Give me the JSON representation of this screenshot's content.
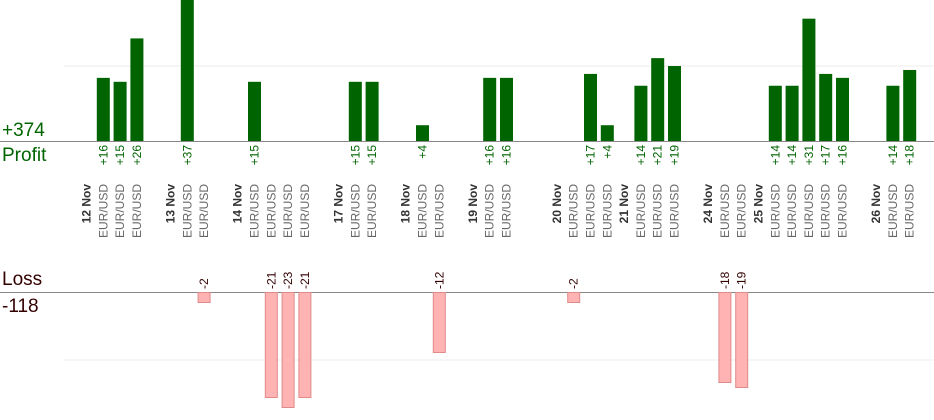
{
  "summary": {
    "profit_total": "+374",
    "profit_label": "Profit",
    "loss_label": "Loss",
    "loss_total": "-118"
  },
  "colors": {
    "profit_bar": "#006400",
    "loss_bar": "#ffb3b3",
    "loss_bar_stroke": "#e08a8a",
    "profit_text": "#006400",
    "loss_text": "#330000",
    "axis": "#888888",
    "grid": "#eeeeee"
  },
  "chart_data": {
    "type": "bar",
    "profit_ylim": [
      0,
      37
    ],
    "loss_ylim": [
      -23,
      0
    ],
    "grid": true,
    "dates": [
      {
        "label": "12 Nov",
        "slot": 0
      },
      {
        "label": "13 Nov",
        "slot": 5
      },
      {
        "label": "14 Nov",
        "slot": 9
      },
      {
        "label": "17 Nov",
        "slot": 15
      },
      {
        "label": "18 Nov",
        "slot": 19
      },
      {
        "label": "19 Nov",
        "slot": 23
      },
      {
        "label": "20 Nov",
        "slot": 28
      },
      {
        "label": "21 Nov",
        "slot": 32
      },
      {
        "label": "24 Nov",
        "slot": 37
      },
      {
        "label": "25 Nov",
        "slot": 40
      },
      {
        "label": "26 Nov",
        "slot": 47
      }
    ],
    "trades": [
      {
        "slot": 1,
        "symbol": "EUR/USD",
        "value": 16,
        "label": "+16"
      },
      {
        "slot": 2,
        "symbol": "EUR/USD",
        "value": 15,
        "label": "+15"
      },
      {
        "slot": 3,
        "symbol": "EUR/USD",
        "value": 26,
        "label": "+26"
      },
      {
        "slot": 6,
        "symbol": "EUR/USD",
        "value": 37,
        "label": "+37"
      },
      {
        "slot": 7,
        "symbol": "EUR/USD",
        "value": -2,
        "label": "-2"
      },
      {
        "slot": 10,
        "symbol": "EUR/USD",
        "value": 15,
        "label": "+15"
      },
      {
        "slot": 11,
        "symbol": "EUR/USD",
        "value": -21,
        "label": "-21"
      },
      {
        "slot": 12,
        "symbol": "EUR/USD",
        "value": -23,
        "label": "-23"
      },
      {
        "slot": 13,
        "symbol": "EUR/USD",
        "value": -21,
        "label": "-21"
      },
      {
        "slot": 16,
        "symbol": "EUR/USD",
        "value": 15,
        "label": "+15"
      },
      {
        "slot": 17,
        "symbol": "EUR/USD",
        "value": 15,
        "label": "+15"
      },
      {
        "slot": 20,
        "symbol": "EUR/USD",
        "value": 4,
        "label": "+4"
      },
      {
        "slot": 21,
        "symbol": "EUR/USD",
        "value": -12,
        "label": "-12"
      },
      {
        "slot": 24,
        "symbol": "EUR/USD",
        "value": 16,
        "label": "+16"
      },
      {
        "slot": 25,
        "symbol": "EUR/USD",
        "value": 16,
        "label": "+16"
      },
      {
        "slot": 29,
        "symbol": "EUR/USD",
        "value": -2,
        "label": "-2"
      },
      {
        "slot": 30,
        "symbol": "EUR/USD",
        "value": 17,
        "label": "+17"
      },
      {
        "slot": 31,
        "symbol": "EUR/USD",
        "value": 4,
        "label": "+4"
      },
      {
        "slot": 33,
        "symbol": "EUR/USD",
        "value": 14,
        "label": "+14"
      },
      {
        "slot": 34,
        "symbol": "EUR/USD",
        "value": 21,
        "label": "+21"
      },
      {
        "slot": 35,
        "symbol": "EUR/USD",
        "value": 19,
        "label": "+19"
      },
      {
        "slot": 38,
        "symbol": "EUR/USD",
        "value": -18,
        "label": "-18"
      },
      {
        "slot": 39,
        "symbol": "EUR/USD",
        "value": -19,
        "label": "-19"
      },
      {
        "slot": 41,
        "symbol": "EUR/USD",
        "value": 14,
        "label": "+14"
      },
      {
        "slot": 42,
        "symbol": "EUR/USD",
        "value": 14,
        "label": "+14"
      },
      {
        "slot": 43,
        "symbol": "EUR/USD",
        "value": 31,
        "label": "+31"
      },
      {
        "slot": 44,
        "symbol": "EUR/USD",
        "value": 17,
        "label": "+17"
      },
      {
        "slot": 45,
        "symbol": "EUR/USD",
        "value": 16,
        "label": "+16"
      },
      {
        "slot": 48,
        "symbol": "EUR/USD",
        "value": 14,
        "label": "+14"
      },
      {
        "slot": 49,
        "symbol": "EUR/USD",
        "value": 18,
        "label": "+18"
      }
    ]
  }
}
